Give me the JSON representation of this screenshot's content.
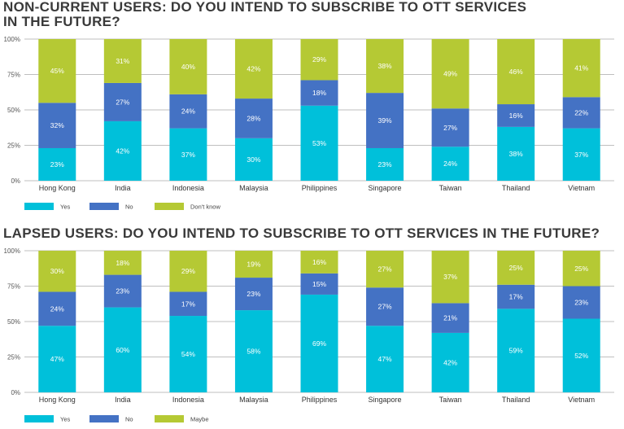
{
  "colors": {
    "yes": "#00c0da",
    "no": "#4472c4",
    "other": "#b5c934",
    "grid": "#bfbfbf"
  },
  "chart_data": [
    {
      "type": "bar",
      "stacked": true,
      "title": "NON-CURRENT USERS: DO YOU INTEND TO SUBSCRIBE TO OTT SERVICES\nIN THE FUTURE?",
      "categories": [
        "Hong Kong",
        "India",
        "Indonesia",
        "Malaysia",
        "Philippines",
        "Singapore",
        "Taiwan",
        "Thailand",
        "Vietnam"
      ],
      "yticks": [
        "0%",
        "25%",
        "50%",
        "75%",
        "100%"
      ],
      "ylim": [
        0,
        100
      ],
      "legend_position": "bottom",
      "series": [
        {
          "name": "Yes",
          "values": [
            23,
            42,
            37,
            30,
            53,
            23,
            24,
            38,
            37
          ],
          "labels": [
            "23%",
            "42%",
            "37%",
            "30%",
            "53%",
            "23%",
            "24%",
            "38%",
            "37%"
          ]
        },
        {
          "name": "No",
          "values": [
            32,
            27,
            24,
            28,
            18,
            39,
            27,
            16,
            22
          ],
          "labels": [
            "32%",
            "27%",
            "24%",
            "28%",
            "18%",
            "39%",
            "27%",
            "16%",
            "22%"
          ]
        },
        {
          "name": "Don't know",
          "values": [
            45,
            31,
            40,
            42,
            29,
            38,
            49,
            46,
            41
          ],
          "labels": [
            "45%",
            "31%",
            "40%",
            "42%",
            "29%",
            "38%",
            "49%",
            "46%",
            "41%"
          ]
        }
      ]
    },
    {
      "type": "bar",
      "stacked": true,
      "title": "LAPSED USERS: DO YOU INTEND TO SUBSCRIBE TO OTT SERVICES IN THE FUTURE?",
      "categories": [
        "Hong Kong",
        "India",
        "Indonesia",
        "Malaysia",
        "Philippines",
        "Singapore",
        "Taiwan",
        "Thailand",
        "Vietnam"
      ],
      "yticks": [
        "0%",
        "25%",
        "50%",
        "75%",
        "100%"
      ],
      "ylim": [
        0,
        100
      ],
      "legend_position": "bottom",
      "series": [
        {
          "name": "Yes",
          "values": [
            47,
            60,
            54,
            58,
            69,
            47,
            42,
            59,
            52
          ],
          "labels": [
            "47%",
            "60%",
            "54%",
            "58%",
            "69%",
            "47%",
            "42%",
            "59%",
            "52%"
          ]
        },
        {
          "name": "No",
          "values": [
            24,
            23,
            17,
            23,
            15,
            27,
            21,
            17,
            23
          ],
          "labels": [
            "24%",
            "23%",
            "17%",
            "23%",
            "15%",
            "27%",
            "21%",
            "17%",
            "23%"
          ]
        },
        {
          "name": "Maybe",
          "values": [
            30,
            18,
            29,
            19,
            16,
            27,
            37,
            25,
            25
          ],
          "labels": [
            "30%",
            "18%",
            "29%",
            "19%",
            "16%",
            "27%",
            "37%",
            "25%",
            "25%"
          ]
        }
      ]
    }
  ]
}
